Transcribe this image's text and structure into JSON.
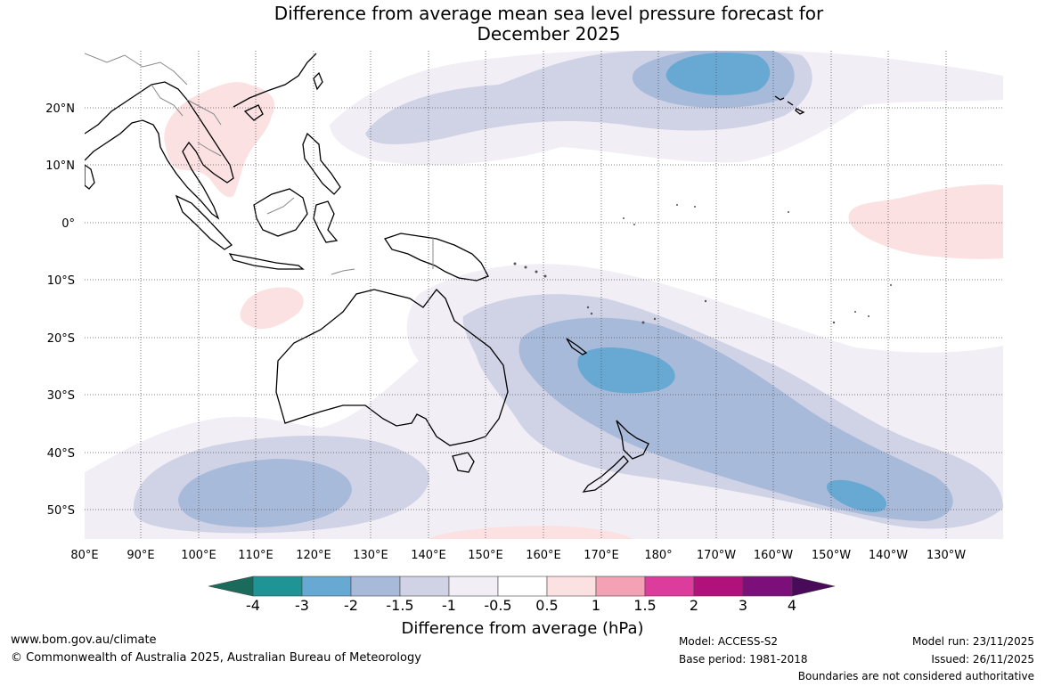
{
  "title": {
    "line1": "Difference from average mean sea level pressure forecast for",
    "line2": "December 2025"
  },
  "map": {
    "lon_labels": [
      "80°E",
      "90°E",
      "100°E",
      "110°E",
      "120°E",
      "130°E",
      "140°E",
      "150°E",
      "160°E",
      "170°E",
      "180°",
      "170°W",
      "160°W",
      "150°W",
      "140°W",
      "130°W"
    ],
    "lat_labels": [
      "20°N",
      "10°N",
      "0°",
      "10°S",
      "20°S",
      "30°S",
      "40°S",
      "50°S"
    ],
    "coastline_color": "#000000",
    "border_color": "#888888",
    "gridline_style": "dotted"
  },
  "colorbar": {
    "ticks": [
      "-4",
      "-3",
      "-2",
      "-1.5",
      "-1",
      "-0.5",
      "0.5",
      "1",
      "1.5",
      "2",
      "3",
      "4"
    ],
    "colors": [
      "#1a6b5c",
      "#1f9494",
      "#67a9d2",
      "#a8bada",
      "#d0d2e6",
      "#f2eef6",
      "#ffffff",
      "#fce1e2",
      "#f4a0b5",
      "#dc3c9c",
      "#b0117a",
      "#7d0f7a",
      "#4a0a5a"
    ],
    "label": "Difference from average (hPa)"
  },
  "footer": {
    "url": "www.bom.gov.au/climate",
    "copyright": "© Commonwealth of Australia 2025, Australian Bureau of Meteorology",
    "model": "Model: ACCESS-S2",
    "base_period": "Base period: 1981-2018",
    "model_run": "Model run: 23/11/2025",
    "issued": "Issued: 26/11/2025",
    "disclaimer": "Boundaries are not considered authoritative"
  }
}
